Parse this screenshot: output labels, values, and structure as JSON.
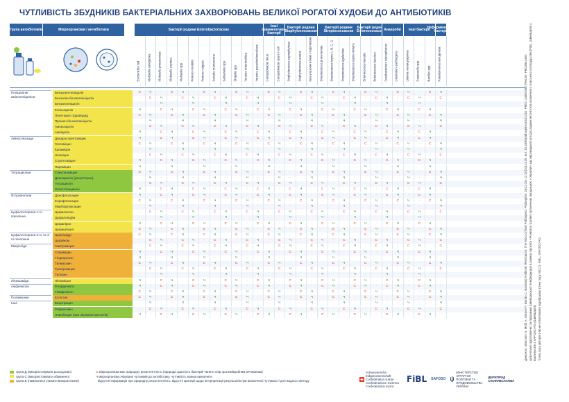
{
  "title": "ЧУТЛИВІСТЬ ЗБУДНИКІВ БАКТЕРІАЛЬНИХ ЗАХВОРЮВАНЬ ВЕЛИКОЇ РОГАТОЇ ХУДОБИ ДО АНТИБІОТИКІВ",
  "header": {
    "group_col": "Група антибіотиків",
    "ab_col": "Мікроорганізми / антибіотики",
    "families": [
      "Бактерії родини Enterobacteriaceae",
      "Інші грамнегативні бактерії",
      "Бактерії родини Staphylococcaceae",
      "Бактерії родини Streptococcaceae",
      "Бактерії родини Enterococcaceae",
      "Анаероби",
      "Інші бактерії",
      "Неферментуючі бактерії"
    ]
  },
  "organisms": [
    "Escherichia coli",
    "Klebsiella aerogenes",
    "Klebsiella pneumoniae",
    "Klebsiella oxytoca",
    "Klebsiella spp.",
    "Proteus mirabilis",
    "Proteus vulgaris",
    "Serratia marcescens",
    "Salmonella spp.",
    "Shigella spp.",
    "Yersinia enterocolitica",
    "Yersinia pseudotuberculosis",
    "Campylobacter fetus",
    "Campylobacter jejuni / coli",
    "Staphylococcus saprophyticus",
    "Staphylococcus aureus",
    "Коагулазонегативні стафілококи",
    "Streptococcus pneumoniae",
    "Streptococcus групи A, B, C, G",
    "Streptococcus agalactiae",
    "Streptococcus групи viridans",
    "Enterococcus faecalis",
    "Enterococcus faecium",
    "Fusobacterium necrophorum",
    "Clostridium perfringens",
    "Listeria monocytogenes",
    "Pasteurella spp.",
    "Bacillus spp.",
    "Pseudomonas aeruginosa"
  ],
  "groups": [
    {
      "name": "Пеніциліни/ амінопеніциліни",
      "rows": [
        "Бензатин-пеніцилін",
        "Бензатин бензилпеніцилін",
        "Бензилпеніцилін",
        "Клоксацилін",
        "Пенетамат гідройодид",
        "Прокаїн бензилпеніцилін",
        "Амоксицилін",
        "Ампіцилін"
      ]
    },
    {
      "name": "Аміноглікозиди",
      "rows": [
        "Дигідрострептоміцин",
        "Гентаміцин",
        "Канаміцин",
        "Неоміцин",
        "Стрептоміцин",
        "Пароміцин"
      ]
    },
    {
      "name": "Тетрацикліни",
      "rows": [
        "Спектиноміцин",
        "Доксициклін (рецепторне)",
        "Тетрациклін",
        "Окситетрациклін"
      ]
    },
    {
      "name": "Фторхінолони",
      "rows": [
        "Данофлоксацин",
        "Енрофлоксацин",
        "Марбофлоксацин"
      ]
    },
    {
      "name": "Цефалоспорини 1-го покоління",
      "rows": [
        "Цефалексин",
        "Цефалонціум",
        "Цефапірин",
        "Цефацетрил"
      ]
    },
    {
      "name": "Цефалоспорини 3-го та 4-го покоління",
      "rows": [
        "Цефтіофур",
        "Цефкіном"
      ]
    },
    {
      "name": "Макроліди",
      "rows": [
        "Гамітроміцин",
        "Спіраміцин",
        "Тілдипрозин",
        "Тилмікозин",
        "Тулатроміцин",
        "Тилозин"
      ]
    },
    {
      "name": "Лінкозаміди",
      "rows": [
        "Лінкоміцин"
      ]
    },
    {
      "name": "Амфеніколи",
      "rows": [
        "Флорфенікол",
        "Тіамфенікол"
      ]
    },
    {
      "name": "Поліміксини",
      "rows": [
        "Колістин"
      ]
    },
    {
      "name": "Інші",
      "rows": [
        "Бацитрацин",
        "Рифаксимін",
        "Новобіоцин (при лікуванні маститів)"
      ]
    }
  ],
  "legend": {
    "cat_d": "група Д (використовувати розсудливо)",
    "cat_c": "група С (використовувати обмежено)",
    "cat_b": "група В (намагатися уникати використання)",
    "sym_c": "мікроорганізм має природну резистентність (природа здатність бактерій чинити опір протимікробним речовинам)",
    "sym_ch": "мікроорганізм очікувано чутливий до антибіотику, чутливість можна визначити",
    "sym_dash": "відсутня інформація про природну резистентність, відсутні критерії щодо інтерпретації результатів при визначенні чутливості для жодного методу",
    "c_mark": "С",
    "ch_mark": "Ч",
    "dash_mark": "-"
  },
  "logos": {
    "confed": "Schweizerische Eidgenossenschaft Confédération suisse Confederazione Svizzera Confederaziun svizra",
    "fibl": "FiBL",
    "safoso": "SAFOSO",
    "ministry": "МІНІСТЕРСТВО АГРАРНОЇ ПОЛІТИКИ ТА ПРОДОВОЛЬСТВА УКРАЇНИ",
    "dps": "ДЕРЖПРОД СПОЖИВСЛУЖБА"
  },
  "sidenote": [
    "Джерело: Marcuino G, Müllr A, Gerace F, Bondu C. Bacterial Antibiotic Resistance: The Most Critical Pathogens. Pathogens. 2021 Oct 12;10(10):1310. doi: 10.3390/pathogens10101310. PMID: 34684258; PMCID: PMC8541462.",
    "Цей плакат підготовлено за підтримки Швейцарської Конфедерації в рамках проєкту «Розвиток торгівлі органічною продукцією з України», що впроваджується Дослідним інститутом органічного сільського господарства (FiBL, Швейцарія) у партнерстві з SAFOSO AG (Швейцарія).",
    "Точка зору авторів (-ів) не обов'язково відображає точку зору SECO, FiBL, SAFOSO AG."
  ],
  "colors": {
    "cat_d": "#8fc741",
    "cat_c": "#f2e44a",
    "cat_b": "#f0b13a",
    "resist": "#e8341c",
    "sens": "#2d8a3c",
    "header": "#2e62a0"
  }
}
